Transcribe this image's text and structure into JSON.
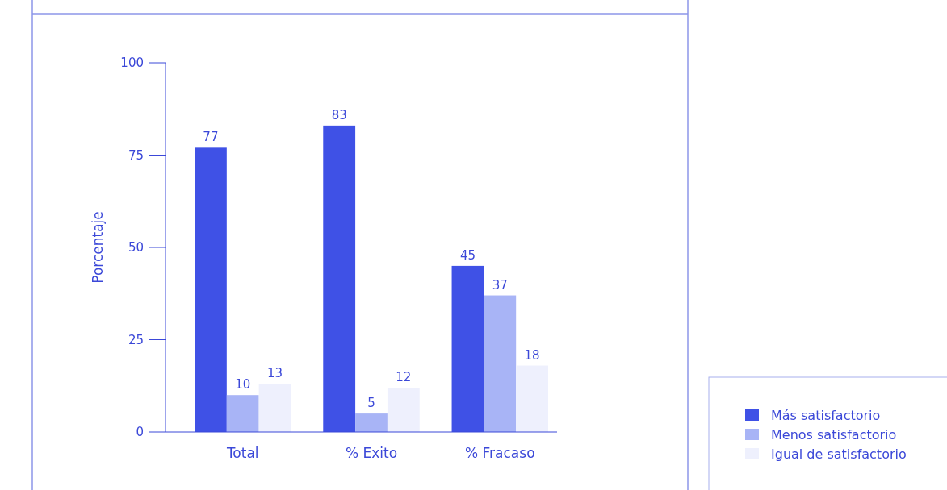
{
  "chart_data": {
    "type": "bar",
    "ylabel": "Porcentaje",
    "categories": [
      "Total",
      "% Exito",
      "% Fracaso"
    ],
    "series": [
      {
        "name": "Más satisfactorio",
        "color": "#3f51e6",
        "values": [
          77,
          83,
          45
        ]
      },
      {
        "name": "Menos satisfactorio",
        "color": "#a8b4f6",
        "values": [
          10,
          5,
          37
        ]
      },
      {
        "name": "Igual de satisfactorio",
        "color": "#eef0fd",
        "values": [
          13,
          12,
          18
        ]
      }
    ],
    "ylim": [
      0,
      100
    ],
    "yticks": [
      0,
      25,
      50,
      75,
      100
    ],
    "data_labels": true,
    "legend": "bottom right"
  }
}
